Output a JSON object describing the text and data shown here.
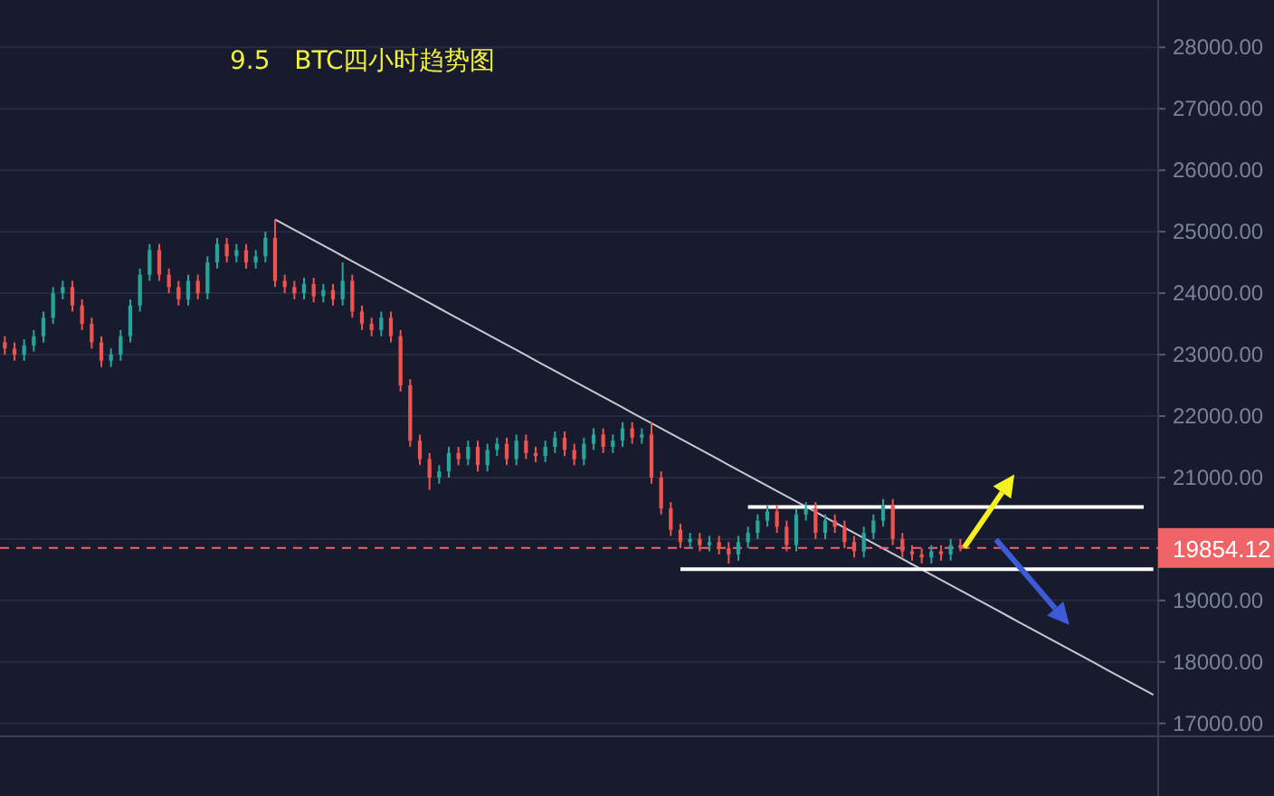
{
  "chart_data": {
    "type": "candlestick",
    "title": "9.5   BTC四小时趋势图",
    "categories": [
      null,
      null,
      null,
      null,
      null,
      null,
      null,
      null,
      null,
      null,
      null,
      null,
      null,
      null,
      null,
      null,
      null,
      null,
      null,
      null,
      null,
      null,
      null,
      null,
      null,
      null,
      null,
      null,
      null,
      null,
      null,
      null,
      null,
      null,
      null,
      null,
      null,
      null,
      null,
      null,
      null,
      null,
      null,
      null,
      null,
      null,
      null,
      null,
      null,
      null,
      null,
      null,
      null,
      null,
      null,
      null,
      null,
      null,
      null,
      null,
      null,
      null,
      null,
      null,
      null,
      null,
      null,
      null,
      null,
      null,
      null,
      null,
      null,
      null,
      null,
      null,
      null,
      null,
      null,
      null,
      null,
      null,
      null,
      null,
      null,
      null,
      null,
      null,
      null,
      null,
      null,
      null,
      null,
      null,
      null,
      null,
      null,
      null,
      null,
      null,
      null,
      null,
      null,
      null,
      null,
      null,
      null,
      null,
      null,
      null,
      null,
      null,
      null,
      null,
      null,
      null,
      null,
      null,
      null,
      null
    ],
    "ohlc": [
      [
        23200,
        23300,
        23000,
        23100
      ],
      [
        23100,
        23200,
        22900,
        23000
      ],
      [
        23000,
        23250,
        22900,
        23150
      ],
      [
        23150,
        23400,
        23050,
        23300
      ],
      [
        23300,
        23700,
        23200,
        23600
      ],
      [
        23600,
        24100,
        23500,
        24000
      ],
      [
        24000,
        24200,
        23900,
        24100
      ],
      [
        24100,
        24200,
        23700,
        23800
      ],
      [
        23800,
        23900,
        23400,
        23500
      ],
      [
        23500,
        23600,
        23100,
        23200
      ],
      [
        23200,
        23300,
        22800,
        22900
      ],
      [
        22900,
        23100,
        22800,
        23000
      ],
      [
        23000,
        23400,
        22900,
        23300
      ],
      [
        23300,
        23900,
        23200,
        23800
      ],
      [
        23800,
        24400,
        23700,
        24300
      ],
      [
        24300,
        24800,
        24200,
        24700
      ],
      [
        24700,
        24800,
        24200,
        24300
      ],
      [
        24300,
        24400,
        24000,
        24100
      ],
      [
        24100,
        24200,
        23800,
        23900
      ],
      [
        23900,
        24300,
        23800,
        24200
      ],
      [
        24200,
        24300,
        23900,
        24000
      ],
      [
        24000,
        24600,
        23900,
        24500
      ],
      [
        24500,
        24900,
        24400,
        24800
      ],
      [
        24800,
        24900,
        24500,
        24600
      ],
      [
        24600,
        24800,
        24500,
        24700
      ],
      [
        24700,
        24800,
        24400,
        24500
      ],
      [
        24500,
        24700,
        24400,
        24600
      ],
      [
        24600,
        25000,
        24500,
        24900
      ],
      [
        24900,
        25200,
        24100,
        24200
      ],
      [
        24200,
        24300,
        24000,
        24100
      ],
      [
        24100,
        24200,
        23900,
        24000
      ],
      [
        24000,
        24250,
        23900,
        24150
      ],
      [
        24150,
        24250,
        23850,
        23950
      ],
      [
        23950,
        24150,
        23850,
        24050
      ],
      [
        24050,
        24150,
        23800,
        23900
      ],
      [
        23900,
        24500,
        23800,
        24200
      ],
      [
        24200,
        24300,
        23600,
        23700
      ],
      [
        23700,
        23800,
        23400,
        23500
      ],
      [
        23500,
        23600,
        23300,
        23400
      ],
      [
        23400,
        23700,
        23300,
        23600
      ],
      [
        23600,
        23700,
        23200,
        23300
      ],
      [
        23300,
        23400,
        22400,
        22500
      ],
      [
        22500,
        22600,
        21500,
        21600
      ],
      [
        21600,
        21700,
        21200,
        21300
      ],
      [
        21300,
        21400,
        20800,
        21000
      ],
      [
        21000,
        21200,
        20900,
        21100
      ],
      [
        21100,
        21500,
        21000,
        21400
      ],
      [
        21400,
        21500,
        21200,
        21300
      ],
      [
        21300,
        21600,
        21200,
        21500
      ],
      [
        21500,
        21600,
        21100,
        21200
      ],
      [
        21200,
        21550,
        21100,
        21450
      ],
      [
        21450,
        21650,
        21350,
        21550
      ],
      [
        21550,
        21650,
        21200,
        21300
      ],
      [
        21300,
        21700,
        21200,
        21600
      ],
      [
        21600,
        21700,
        21300,
        21400
      ],
      [
        21400,
        21500,
        21250,
        21350
      ],
      [
        21350,
        21600,
        21250,
        21500
      ],
      [
        21500,
        21750,
        21400,
        21650
      ],
      [
        21650,
        21750,
        21350,
        21450
      ],
      [
        21450,
        21550,
        21200,
        21300
      ],
      [
        21300,
        21650,
        21200,
        21550
      ],
      [
        21550,
        21800,
        21450,
        21700
      ],
      [
        21700,
        21800,
        21400,
        21500
      ],
      [
        21500,
        21700,
        21400,
        21600
      ],
      [
        21600,
        21900,
        21500,
        21800
      ],
      [
        21800,
        21900,
        21550,
        21650
      ],
      [
        21650,
        21800,
        21550,
        21700
      ],
      [
        21700,
        21900,
        20900,
        21000
      ],
      [
        21000,
        21100,
        20400,
        20500
      ],
      [
        20500,
        20600,
        20050,
        20150
      ],
      [
        20150,
        20250,
        19850,
        19950
      ],
      [
        19950,
        20100,
        19850,
        20000
      ],
      [
        20000,
        20100,
        19800,
        19900
      ],
      [
        19900,
        20050,
        19800,
        19950
      ],
      [
        19950,
        20050,
        19750,
        19850
      ],
      [
        19850,
        19950,
        19600,
        19750
      ],
      [
        19750,
        20050,
        19650,
        19950
      ],
      [
        19950,
        20200,
        19850,
        20100
      ],
      [
        20100,
        20400,
        20000,
        20300
      ],
      [
        20300,
        20550,
        20200,
        20450
      ],
      [
        20450,
        20550,
        20100,
        20200
      ],
      [
        20200,
        20300,
        19800,
        19900
      ],
      [
        19900,
        20500,
        19800,
        20400
      ],
      [
        20400,
        20600,
        20300,
        20500
      ],
      [
        20500,
        20600,
        20000,
        20100
      ],
      [
        20100,
        20400,
        20000,
        20300
      ],
      [
        20300,
        20400,
        20100,
        20200
      ],
      [
        20200,
        20300,
        19850,
        19950
      ],
      [
        19950,
        20050,
        19700,
        19800
      ],
      [
        19800,
        20200,
        19700,
        20100
      ],
      [
        20100,
        20400,
        20000,
        20300
      ],
      [
        20300,
        20650,
        20200,
        20550
      ],
      [
        20550,
        20650,
        19900,
        20000
      ],
      [
        20000,
        20100,
        19700,
        19800
      ],
      [
        19800,
        19900,
        19650,
        19750
      ],
      [
        19750,
        19850,
        19600,
        19700
      ],
      [
        19700,
        19900,
        19600,
        19800
      ],
      [
        19800,
        19900,
        19650,
        19750
      ],
      [
        19750,
        20000,
        19650,
        19900
      ],
      [
        19900,
        20000,
        19800,
        19854.12
      ],
      null,
      null,
      null,
      null,
      null,
      null,
      null,
      null,
      null,
      null,
      null,
      null,
      null,
      null,
      null,
      null,
      null,
      null,
      null,
      null
    ],
    "series": [
      {
        "type": "line",
        "color": "#c8c8d0",
        "values": [
          null,
          null,
          null,
          null,
          null,
          null,
          null,
          null,
          null,
          null,
          null,
          null,
          null,
          null,
          null,
          null,
          null,
          null,
          null,
          null,
          null,
          null,
          null,
          null,
          null,
          null,
          null,
          null,
          25200,
          25115,
          25030,
          24945,
          24860,
          24775,
          24690,
          24605,
          24520,
          24435,
          24350,
          24265,
          24180,
          24095,
          24010,
          23925,
          23840,
          23755,
          23670,
          23585,
          23500,
          23415,
          23330,
          23245,
          23160,
          23075,
          22990,
          22905,
          22820,
          22735,
          22650,
          22565,
          22480,
          22395,
          22310,
          22225,
          22140,
          22055,
          21970,
          21885,
          21800,
          21715,
          21630,
          21545,
          21460,
          21375,
          21290,
          21205,
          21120,
          21035,
          20950,
          20865,
          20780,
          20695,
          20610,
          20525,
          20440,
          20355,
          20270,
          20185,
          20100,
          20015,
          19930,
          19845,
          19760,
          19675,
          19590,
          19505,
          19420,
          19335,
          19250,
          19165,
          19080,
          18995,
          18910,
          18825,
          18740,
          18655,
          18570,
          18485,
          18400,
          18315,
          18230,
          18145,
          18060,
          17975,
          17890,
          17805,
          17720,
          17635,
          17550,
          17465
        ]
      },
      {
        "type": "line",
        "color": "#ffffff",
        "values": [
          null,
          null,
          null,
          null,
          null,
          null,
          null,
          null,
          null,
          null,
          null,
          null,
          null,
          null,
          null,
          null,
          null,
          null,
          null,
          null,
          null,
          null,
          null,
          null,
          null,
          null,
          null,
          null,
          null,
          null,
          null,
          null,
          null,
          null,
          null,
          null,
          null,
          null,
          null,
          null,
          null,
          null,
          null,
          null,
          null,
          null,
          null,
          null,
          null,
          null,
          null,
          null,
          null,
          null,
          null,
          null,
          null,
          null,
          null,
          null,
          null,
          null,
          null,
          null,
          null,
          null,
          null,
          null,
          null,
          null,
          null,
          null,
          null,
          null,
          null,
          null,
          null,
          20520,
          20520,
          20520,
          20520,
          20520,
          20520,
          20520,
          20520,
          20520,
          20520,
          20520,
          20520,
          20520,
          20520,
          20520,
          20520,
          20520,
          20520,
          20520,
          20520,
          20520,
          20520,
          20520,
          20520,
          20520,
          20520,
          20520,
          20520,
          20520,
          20520,
          20520,
          20520,
          20520,
          20520,
          20520,
          20520,
          20520,
          20520,
          20520,
          20520,
          20520,
          20520,
          null
        ]
      },
      {
        "type": "line",
        "color": "#ffffff",
        "values": [
          null,
          null,
          null,
          null,
          null,
          null,
          null,
          null,
          null,
          null,
          null,
          null,
          null,
          null,
          null,
          null,
          null,
          null,
          null,
          null,
          null,
          null,
          null,
          null,
          null,
          null,
          null,
          null,
          null,
          null,
          null,
          null,
          null,
          null,
          null,
          null,
          null,
          null,
          null,
          null,
          null,
          null,
          null,
          null,
          null,
          null,
          null,
          null,
          null,
          null,
          null,
          null,
          null,
          null,
          null,
          null,
          null,
          null,
          null,
          null,
          null,
          null,
          null,
          null,
          null,
          null,
          null,
          null,
          null,
          null,
          19510,
          19510,
          19510,
          19510,
          19510,
          19510,
          19510,
          19510,
          19510,
          19510,
          19510,
          19510,
          19510,
          19510,
          19510,
          19510,
          19510,
          19510,
          19510,
          19510,
          19510,
          19510,
          19510,
          19510,
          19510,
          19510,
          19510,
          19510,
          19510,
          19510,
          19510,
          19510,
          19510,
          19510,
          19510,
          19510,
          19510,
          19510,
          19510,
          19510,
          19510,
          19510,
          19510,
          19510,
          19510,
          19510,
          19510,
          19510,
          19510,
          19510
        ]
      }
    ],
    "ref_lines": [
      {
        "axis": "y",
        "value": 19854.12,
        "label": "19854.12",
        "color": "#f06467",
        "line_style": "dashed"
      }
    ],
    "ylim": [
      16790,
      28770
    ],
    "yticks": [
      {
        "value": 17000,
        "label": "17000.00"
      },
      {
        "value": 18000,
        "label": "18000.00"
      },
      {
        "value": 19000,
        "label": "19000.00"
      },
      {
        "value": 20000,
        "label": null
      },
      {
        "value": 21000,
        "label": "21000.00"
      },
      {
        "value": 22000,
        "label": "22000.00"
      },
      {
        "value": 23000,
        "label": "23000.00"
      },
      {
        "value": 24000,
        "label": "24000.00"
      },
      {
        "value": 25000,
        "label": "25000.00"
      },
      {
        "value": 26000,
        "label": "26000.00"
      },
      {
        "value": 27000,
        "label": "27000.00"
      },
      {
        "value": 28000,
        "label": "28000.00"
      }
    ],
    "grid": "y",
    "tick_labels": "y"
  }
}
